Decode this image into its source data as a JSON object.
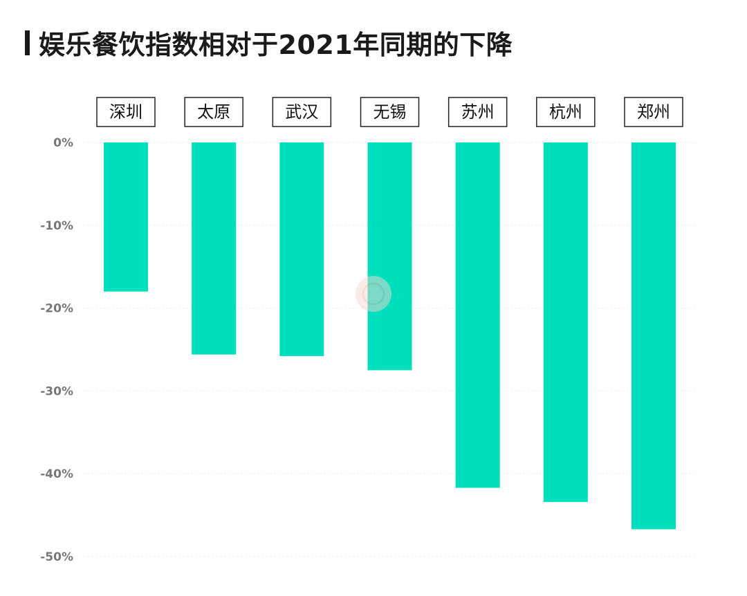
{
  "title": "娱乐餐饮指数相对于2021年同期的下降",
  "colors": {
    "bar": "#00dfbd",
    "title": "#1a1a1a",
    "tick": "#777777",
    "category_box": "#222222"
  },
  "chart_data": {
    "type": "bar",
    "title": "娱乐餐饮指数相对于2021年同期的下降",
    "categories": [
      "深圳",
      "太原",
      "武汉",
      "无锡",
      "苏州",
      "杭州",
      "郑州"
    ],
    "values": [
      -18,
      -25.6,
      -25.8,
      -27.5,
      -41.7,
      -43.4,
      -46.7
    ],
    "ylim": [
      -50,
      0
    ],
    "yticks": [
      0,
      -10,
      -20,
      -30,
      -40,
      -50
    ],
    "ytick_labels": [
      "0%",
      "-10%",
      "-20%",
      "-30%",
      "-40%",
      "-50%"
    ],
    "category_label_position": "top",
    "grid": true,
    "legend": "none"
  }
}
